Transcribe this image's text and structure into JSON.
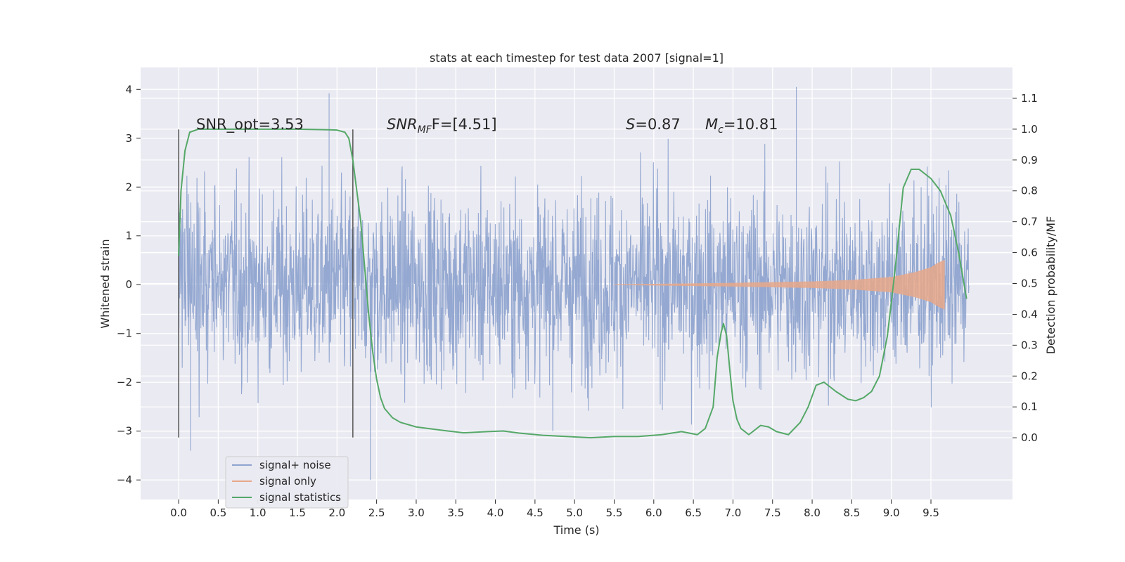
{
  "chart_data": {
    "type": "line",
    "title": "stats at each timestep for test data 2007 [signal=1]",
    "xlabel": "Time (s)",
    "ylabel_left": "Whitened strain",
    "ylabel_right": "Detection probability/MF",
    "x_ticks": [
      "0.0",
      "0.5",
      "1.0",
      "1.5",
      "2.0",
      "2.5",
      "3.0",
      "3.5",
      "4.0",
      "4.5",
      "5.0",
      "5.5",
      "6.0",
      "6.5",
      "7.0",
      "7.5",
      "8.0",
      "8.5",
      "9.0",
      "9.5"
    ],
    "y_left_ticks": [
      "4",
      "3",
      "2",
      "1",
      "0",
      "−1",
      "−2",
      "−3",
      "−4"
    ],
    "y_right_ticks": [
      "1.1",
      "1.0",
      "0.9",
      "0.8",
      "0.7",
      "0.6",
      "0.5",
      "0.4",
      "0.3",
      "0.2",
      "0.1",
      "0.0"
    ],
    "xlim": [
      -0.48,
      10.53
    ],
    "ylim_left": [
      -4.4,
      4.45
    ],
    "ylim_right": [
      -0.2,
      1.2
    ],
    "grid": true,
    "legend_position": "lower-left",
    "annotations": [
      {
        "key": "snr_opt",
        "text": "SNR_opt=3.53"
      },
      {
        "key": "snr_mf",
        "text": "SNR",
        "sub": "MF",
        "after": "F=[4.51]"
      },
      {
        "key": "s",
        "text": "S",
        "after": "=0.87"
      },
      {
        "key": "mc",
        "text": "M",
        "sub": "c",
        "after": "=10.81"
      }
    ],
    "vertical_markers": [
      0.0,
      2.2
    ],
    "series": [
      {
        "name": "signal+ noise",
        "color": "#8fa4cf",
        "axis": "left",
        "x_range": [
          0.0,
          9.98
        ],
        "samples": 2200,
        "typical_amplitude": 1.3,
        "peak_amplitude": 4.05,
        "note_visible_extremes": [
          [
            1.9,
            3.92
          ],
          [
            2.42,
            -4.0
          ],
          [
            7.8,
            4.05
          ],
          [
            0.15,
            -3.4
          ]
        ]
      },
      {
        "name": "signal only",
        "color": "#dd8452",
        "axis": "left",
        "x_range": [
          5.5,
          9.67
        ],
        "envelope": [
          [
            5.5,
            0.0
          ],
          [
            6.0,
            0.01
          ],
          [
            7.0,
            0.03
          ],
          [
            8.0,
            0.06
          ],
          [
            8.5,
            0.09
          ],
          [
            9.0,
            0.15
          ],
          [
            9.3,
            0.25
          ],
          [
            9.5,
            0.35
          ],
          [
            9.6,
            0.45
          ],
          [
            9.67,
            0.5
          ]
        ]
      },
      {
        "name": "signal statistics",
        "color": "#55a868",
        "axis": "right",
        "x": [
          0.0,
          0.03,
          0.08,
          0.14,
          0.25,
          0.5,
          1.0,
          1.5,
          1.9,
          2.0,
          2.1,
          2.15,
          2.2,
          2.3,
          2.35,
          2.4,
          2.45,
          2.5,
          2.55,
          2.6,
          2.7,
          2.8,
          3.0,
          3.3,
          3.6,
          3.9,
          4.1,
          4.3,
          4.6,
          4.9,
          5.2,
          5.5,
          5.8,
          6.1,
          6.35,
          6.55,
          6.65,
          6.75,
          6.8,
          6.85,
          6.88,
          6.92,
          6.96,
          7.0,
          7.05,
          7.1,
          7.2,
          7.35,
          7.45,
          7.55,
          7.7,
          7.85,
          7.95,
          8.05,
          8.15,
          8.3,
          8.45,
          8.55,
          8.65,
          8.75,
          8.85,
          8.95,
          9.05,
          9.15,
          9.25,
          9.35,
          9.5,
          9.62,
          9.75,
          9.85,
          9.95
        ],
        "y": [
          0.59,
          0.8,
          0.93,
          0.99,
          1.0,
          1.0,
          1.0,
          1.0,
          0.998,
          0.997,
          0.99,
          0.97,
          0.9,
          0.7,
          0.55,
          0.4,
          0.28,
          0.19,
          0.13,
          0.095,
          0.065,
          0.05,
          0.035,
          0.025,
          0.016,
          0.02,
          0.022,
          0.015,
          0.008,
          0.004,
          0.0,
          0.004,
          0.004,
          0.01,
          0.02,
          0.01,
          0.03,
          0.1,
          0.26,
          0.34,
          0.37,
          0.33,
          0.22,
          0.12,
          0.06,
          0.03,
          0.01,
          0.04,
          0.035,
          0.02,
          0.01,
          0.05,
          0.1,
          0.17,
          0.18,
          0.15,
          0.125,
          0.12,
          0.13,
          0.15,
          0.2,
          0.33,
          0.55,
          0.81,
          0.87,
          0.87,
          0.84,
          0.8,
          0.72,
          0.6,
          0.45
        ]
      }
    ]
  }
}
